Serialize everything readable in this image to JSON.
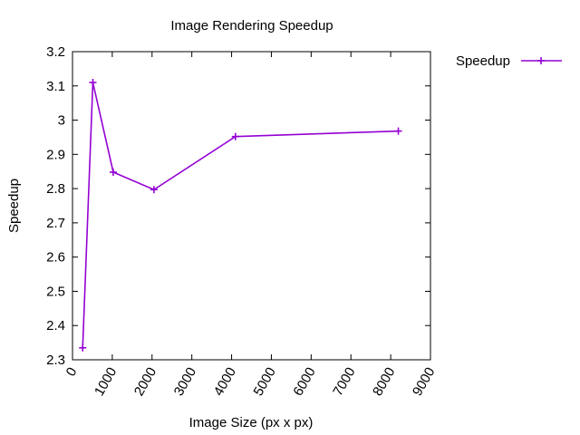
{
  "chart_data": {
    "type": "line",
    "title": "Image Rendering Speedup",
    "xlabel": "Image Size (px x px)",
    "ylabel": "Speedup",
    "xlim": [
      0,
      9000
    ],
    "ylim": [
      2.3,
      3.2
    ],
    "xticks": [
      "0",
      "1000",
      "2000",
      "3000",
      "4000",
      "5000",
      "6000",
      "7000",
      "8000",
      "9000"
    ],
    "yticks": [
      "2.3",
      "2.4",
      "2.5",
      "2.6",
      "2.7",
      "2.8",
      "2.9",
      "3",
      "3.1",
      "3.2"
    ],
    "grid": false,
    "legend_position": "outside-top-right",
    "series": [
      {
        "name": "Speedup",
        "color": "#9400d3",
        "marker": "plus",
        "x": [
          256,
          512,
          1024,
          2048,
          4096,
          8192
        ],
        "y": [
          2.335,
          3.11,
          2.848,
          2.797,
          2.952,
          2.968
        ]
      }
    ]
  }
}
